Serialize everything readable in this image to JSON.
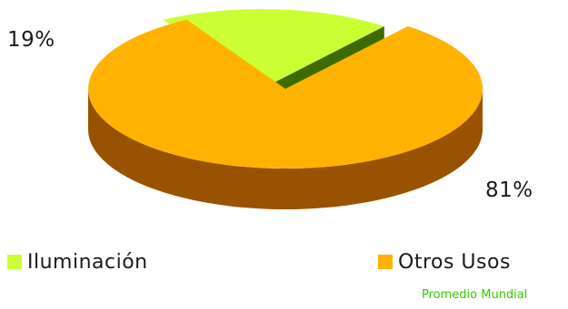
{
  "chart_data": {
    "type": "pie",
    "style": "3d-exploded",
    "categories": [
      "Iluminación",
      "Otros Usos"
    ],
    "values": [
      19,
      81
    ],
    "value_labels": [
      "19%",
      "81%"
    ],
    "colors": [
      "#ccff33",
      "#ffb300"
    ],
    "side_colors": [
      "#3d6b00",
      "#995200"
    ],
    "legend_placement": "bottom",
    "footnote": "Promedio Mundial",
    "footnote_color": "#33cc00"
  }
}
